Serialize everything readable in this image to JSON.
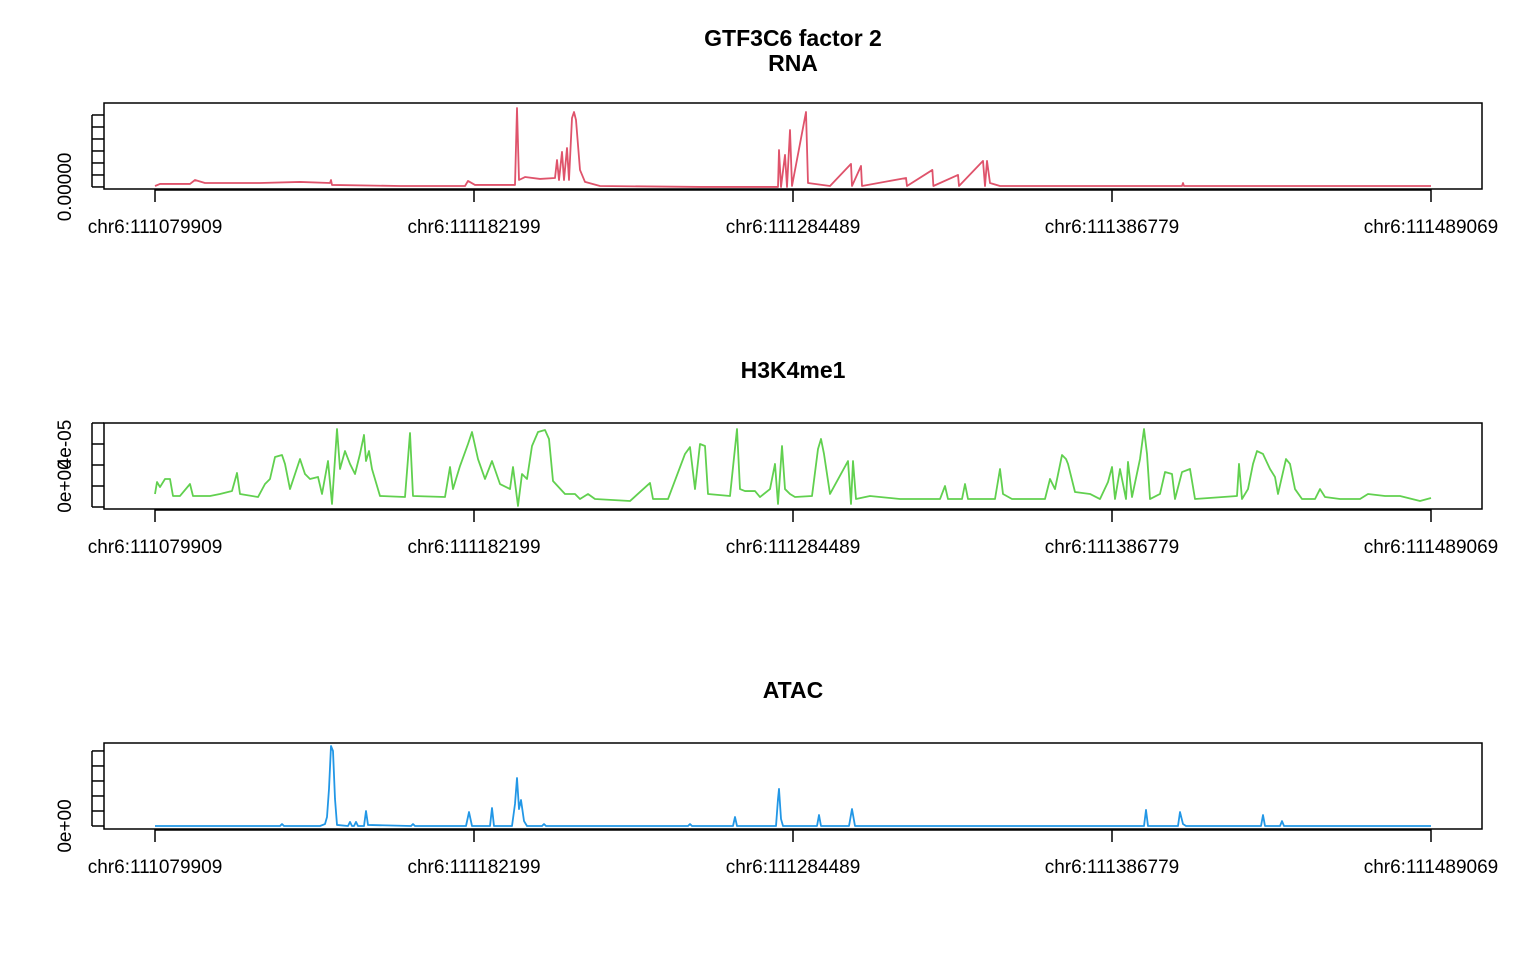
{
  "chart_data": [
    {
      "type": "line",
      "title": "GTF3C6 factor 2",
      "subtitle": "RNA",
      "xlim": [
        111063555,
        111505423
      ],
      "ylim": [
        -1.7e-06,
        7e-05
      ],
      "xticks": [
        {
          "value": 111079909,
          "label": "chr6:111079909"
        },
        {
          "value": 111182199,
          "label": "chr6:111182199"
        },
        {
          "value": 111284489,
          "label": "chr6:111284489"
        },
        {
          "value": 111386779,
          "label": "chr6:111386779"
        },
        {
          "value": 111489069,
          "label": "chr6:111489069"
        }
      ],
      "yticks": [
        {
          "value": 0,
          "label": "0.00000"
        },
        {
          "value": 1e-05,
          "label": null
        },
        {
          "value": 2e-05,
          "label": null
        },
        {
          "value": 3e-05,
          "label": null
        },
        {
          "value": 4e-05,
          "label": null
        },
        {
          "value": 5e-05,
          "label": null
        },
        {
          "value": 6e-05,
          "label": null
        }
      ],
      "x": [
        111079909,
        111081512,
        111091132,
        111092735,
        111095942,
        111113578,
        111126405,
        111136025,
        111136345,
        111136666,
        111158471,
        111179314,
        111180276,
        111182520,
        111195347,
        111195988,
        111196629,
        111198553,
        111203363,
        111208173,
        111208814,
        111209456,
        111210418,
        111211059,
        111212021,
        111212662,
        111213624,
        111214266,
        111214907,
        111216190,
        111217793,
        111222603,
        111254669,
        111279680,
        111280001,
        111280642,
        111281925,
        111282566,
        111283528,
        111284169,
        111288659,
        111289300,
        111296355,
        111303088,
        111303409,
        111306295,
        111306616,
        111320725,
        111321045,
        111329180,
        111329500,
        111337397,
        111337718,
        111345416,
        111346057,
        111346698,
        111347660,
        111350867,
        111409227,
        111409547,
        111409868,
        111489069
      ],
      "series": [
        {
          "color": "#df536b",
          "values": [
            8e-07,
            2.5e-06,
            2.5e-06,
            5.8e-06,
            3.3e-06,
            3.3e-06,
            4.2e-06,
            3.3e-06,
            5.8e-06,
            1.7e-06,
            8e-07,
            8e-07,
            5e-06,
            1.7e-06,
            1.7e-06,
            6.58e-05,
            5.8e-06,
            8.3e-06,
            6.7e-06,
            7.5e-06,
            2.25e-05,
            5.8e-06,
            2.92e-05,
            5.8e-06,
            3.25e-05,
            5.8e-06,
            5.75e-05,
            6.25e-05,
            5.58e-05,
            1.42e-05,
            4.2e-06,
            8e-07,
            0,
            0,
            3.08e-05,
            0,
            2.67e-05,
            0,
            4.75e-05,
            8e-07,
            6.25e-05,
            3.3e-06,
            8e-07,
            1.92e-05,
            8e-07,
            1.75e-05,
            8e-07,
            7.5e-06,
            8e-07,
            1.42e-05,
            8e-07,
            1e-05,
            8e-07,
            2.17e-05,
            8e-07,
            2.17e-05,
            3.3e-06,
            8e-07,
            8e-07,
            3.3e-06,
            8e-07,
            8e-07
          ]
        }
      ]
    },
    {
      "type": "line",
      "title": "H3K4me1",
      "xlim": [
        111063555,
        111505423
      ],
      "ylim": [
        -2.19e-05,
        6e-05
      ],
      "xticks": [
        {
          "value": 111079909,
          "label": "chr6:111079909"
        },
        {
          "value": 111182199,
          "label": "chr6:111182199"
        },
        {
          "value": 111284489,
          "label": "chr6:111284489"
        },
        {
          "value": 111386779,
          "label": "chr6:111386779"
        },
        {
          "value": 111489069,
          "label": "chr6:111489069"
        }
      ],
      "yticks": [
        {
          "value": -2e-05,
          "label": null
        },
        {
          "value": 0,
          "label": "0e+00"
        },
        {
          "value": 2e-05,
          "label": null
        },
        {
          "value": 4e-05,
          "label": "4e-05"
        },
        {
          "value": 6e-05,
          "label": null
        }
      ],
      "x": [
        111079909,
        111080550,
        111081512,
        111083116,
        111084719,
        111085681,
        111087926,
        111091132,
        111092094,
        111097545,
        111100752,
        111104600,
        111106203,
        111107165,
        111112937,
        111115182,
        111116785,
        111118388,
        111120633,
        111121595,
        111123198,
        111126405,
        111128008,
        111129611,
        111132177,
        111133459,
        111135383,
        111136666,
        111138269,
        111139231,
        111140834,
        111142438,
        111144041,
        111145644,
        111146927,
        111147568,
        111148530,
        111149492,
        111152058,
        111160074,
        111161677,
        111162639,
        111172900,
        111174504,
        111175466,
        111177710,
        111180276,
        111181558,
        111183482,
        111185727,
        111187971,
        111190537,
        111193743,
        111194705,
        111196309,
        111197591,
        111199195,
        111200798,
        111202722,
        111204966,
        111206249,
        111207532,
        111211380,
        111214586,
        111216190,
        111218755,
        111220999,
        111232223,
        111238636,
        111239598,
        111244408,
        111249859,
        111251462,
        111253065,
        111254669,
        111256272,
        111257234,
        111264289,
        111266533,
        111267495,
        111269098,
        111272305,
        111273908,
        111277115,
        111278718,
        111279680,
        111280963,
        111281925,
        111283528,
        111285131,
        111290583,
        111292507,
        111293469,
        111294431,
        111296355,
        111302126,
        111303088,
        111303730,
        111304692,
        111309181,
        111318801,
        111331627,
        111333230,
        111334192,
        111338682,
        111339644,
        111340606,
        111349263,
        111350867,
        111351829,
        111354715,
        111365296,
        111366900,
        111368503,
        111370748,
        111372030,
        111372672,
        111374916,
        111379726,
        111382933,
        111385498,
        111386781,
        111387743,
        111389346,
        111391270,
        111391911,
        111393194,
        111395759,
        111397042,
        111398004,
        111398966,
        111402172,
        111403776,
        111406020,
        111406982,
        111409227,
        111411792,
        111413395,
        111426863,
        111427504,
        111428466,
        111430390,
        111431994,
        111433276,
        111435200,
        111437445,
        111439048,
        111440010,
        111442575,
        111443858,
        111445461,
        111447706,
        111451875,
        111453478,
        111455081,
        111459891,
        111466304,
        111468870,
        111474321,
        111479131,
        111485544,
        111489069
      ],
      "series": [
        {
          "color": "#61d04f",
          "values": [
            -7.6e-06,
            3.8e-06,
            -1e-06,
            6.7e-06,
            6.7e-06,
            -9.5e-06,
            -9.5e-06,
            1.9e-06,
            -9.5e-06,
            -9.5e-06,
            -7.6e-06,
            -4.8e-06,
            1.24e-05,
            -7.6e-06,
            -1.05e-05,
            1.9e-06,
            6.7e-06,
            2.76e-05,
            2.95e-05,
            2.1e-05,
            -2.9e-06,
            2.57e-05,
            1.14e-05,
            6.7e-06,
            8.6e-06,
            -7.6e-06,
            2.38e-05,
            -1.71e-05,
            5.43e-05,
            1.62e-05,
            3.33e-05,
            2.1e-05,
            1.14e-05,
            3.05e-05,
            4.86e-05,
            2.38e-05,
            3.33e-05,
            1.62e-05,
            -9.5e-06,
            -1.05e-05,
            5.05e-05,
            -9.5e-06,
            -1.05e-05,
            1.81e-05,
            -2.9e-06,
            1.9e-05,
            4e-05,
            5.14e-05,
            2.57e-05,
            6.7e-06,
            2.38e-05,
            1.9e-06,
            -2.9e-06,
            1.81e-05,
            -1.9e-05,
            1.14e-05,
            6.7e-06,
            3.81e-05,
            5.14e-05,
            5.33e-05,
            4.48e-05,
            4.8e-06,
            -7.6e-06,
            -7.6e-06,
            -1.24e-05,
            -7.6e-06,
            -1.24e-05,
            -1.43e-05,
            2.9e-06,
            -1.24e-05,
            -1.24e-05,
            3.05e-05,
            3.71e-05,
            -2.9e-06,
            4e-05,
            3.81e-05,
            -7.6e-06,
            -9.5e-06,
            5.43e-05,
            -2.9e-06,
            -4.8e-06,
            -4.8e-06,
            -1.05e-05,
            -2.9e-06,
            2.1e-05,
            -1.71e-05,
            3.81e-05,
            -2.9e-06,
            -7.6e-06,
            -1.05e-05,
            -9.5e-06,
            3.52e-05,
            4.48e-05,
            3.05e-05,
            -7.6e-06,
            2.38e-05,
            -1.71e-05,
            2.38e-05,
            -1.24e-05,
            -9.5e-06,
            -1.24e-05,
            -1.24e-05,
            0,
            -1.24e-05,
            -1.24e-05,
            1.9e-06,
            -1.24e-05,
            -1.24e-05,
            1.62e-05,
            -7.6e-06,
            -1.24e-05,
            -1.24e-05,
            6.7e-06,
            -2.9e-06,
            2.95e-05,
            2.57e-05,
            2.1e-05,
            -5.7e-06,
            -7.6e-06,
            -1.24e-05,
            3.8e-06,
            1.81e-05,
            -1.24e-05,
            1.62e-05,
            -1.24e-05,
            2.29e-05,
            -1.05e-05,
            2.57e-05,
            5.43e-05,
            3.05e-05,
            -1.24e-05,
            -7.6e-06,
            1.33e-05,
            1.14e-05,
            -1.24e-05,
            1.33e-05,
            1.62e-05,
            -1.24e-05,
            -9.5e-06,
            2.1e-05,
            -1.24e-05,
            -2.9e-06,
            2.1e-05,
            3.33e-05,
            3.05e-05,
            1.62e-05,
            8.6e-06,
            -7.6e-06,
            2.57e-05,
            2.1e-05,
            -2.9e-06,
            -1.24e-05,
            -1.24e-05,
            -2.9e-06,
            -1.05e-05,
            -1.24e-05,
            -1.24e-05,
            -7.6e-06,
            -9.5e-06,
            -9.5e-06,
            -1.43e-05,
            -1.14e-05
          ]
        }
      ]
    },
    {
      "type": "line",
      "title": "ATAC",
      "xlim": [
        111063555,
        111505423
      ],
      "ylim": [
        -2e-06,
        5.53e-05
      ],
      "xticks": [
        {
          "value": 111079909,
          "label": "chr6:111079909"
        },
        {
          "value": 111182199,
          "label": "chr6:111182199"
        },
        {
          "value": 111284489,
          "label": "chr6:111284489"
        },
        {
          "value": 111386779,
          "label": "chr6:111386779"
        },
        {
          "value": 111489069,
          "label": "chr6:111489069"
        }
      ],
      "yticks": [
        {
          "value": 0,
          "label": "0e+00"
        },
        {
          "value": 1e-05,
          "label": null
        },
        {
          "value": 2e-05,
          "label": null
        },
        {
          "value": 3e-05,
          "label": null
        },
        {
          "value": 4e-05,
          "label": null
        },
        {
          "value": 5e-05,
          "label": null
        }
      ],
      "x": [
        111079909,
        111119992,
        111120633,
        111121274,
        111132818,
        111134421,
        111135063,
        111135704,
        111136345,
        111136986,
        111137628,
        111138269,
        111141796,
        111142438,
        111143079,
        111143720,
        111144362,
        111145003,
        111146927,
        111147568,
        111148210,
        111161998,
        111162639,
        111163281,
        111179634,
        111180596,
        111181558,
        111187330,
        111187971,
        111188613,
        111194385,
        111195347,
        111195988,
        111196629,
        111197271,
        111198233,
        111199195,
        111204004,
        111204646,
        111205287,
        111250821,
        111251462,
        111252103,
        111265250,
        111265892,
        111266533,
        111279039,
        111279680,
        111280001,
        111280642,
        111281283,
        111292186,
        111292827,
        111293469,
        111302447,
        111303409,
        111304371,
        111397042,
        111397683,
        111398324,
        111407944,
        111408586,
        111409547,
        111410509,
        111434559,
        111435200,
        111435842,
        111440652,
        111441293,
        111441934,
        111489069
      ],
      "series": [
        {
          "color": "#2297e6",
          "values": [
            0,
            0,
            1.3e-06,
            0,
            0,
            1.3e-06,
            6e-06,
            2.47e-05,
            5.33e-05,
            5e-05,
            1.8e-05,
            7e-07,
            0,
            2.7e-06,
            0,
            0,
            2.7e-06,
            0,
            0,
            1e-05,
            7e-07,
            0,
            1.3e-06,
            0,
            0,
            9.3e-06,
            0,
            0,
            1.2e-05,
            0,
            0,
            1.47e-05,
            3.2e-05,
            1.13e-05,
            1.73e-05,
            3.3e-06,
            0,
            0,
            1.3e-06,
            0,
            0,
            1.3e-06,
            0,
            0,
            6e-06,
            0,
            0,
            1.8e-05,
            2.47e-05,
            4.7e-06,
            0,
            0,
            7.3e-06,
            0,
            0,
            1.13e-05,
            0,
            0,
            1.07e-05,
            0,
            0,
            9.3e-06,
            1.3e-06,
            0,
            0,
            7.3e-06,
            0,
            0,
            3.3e-06,
            0,
            0
          ]
        }
      ]
    }
  ]
}
